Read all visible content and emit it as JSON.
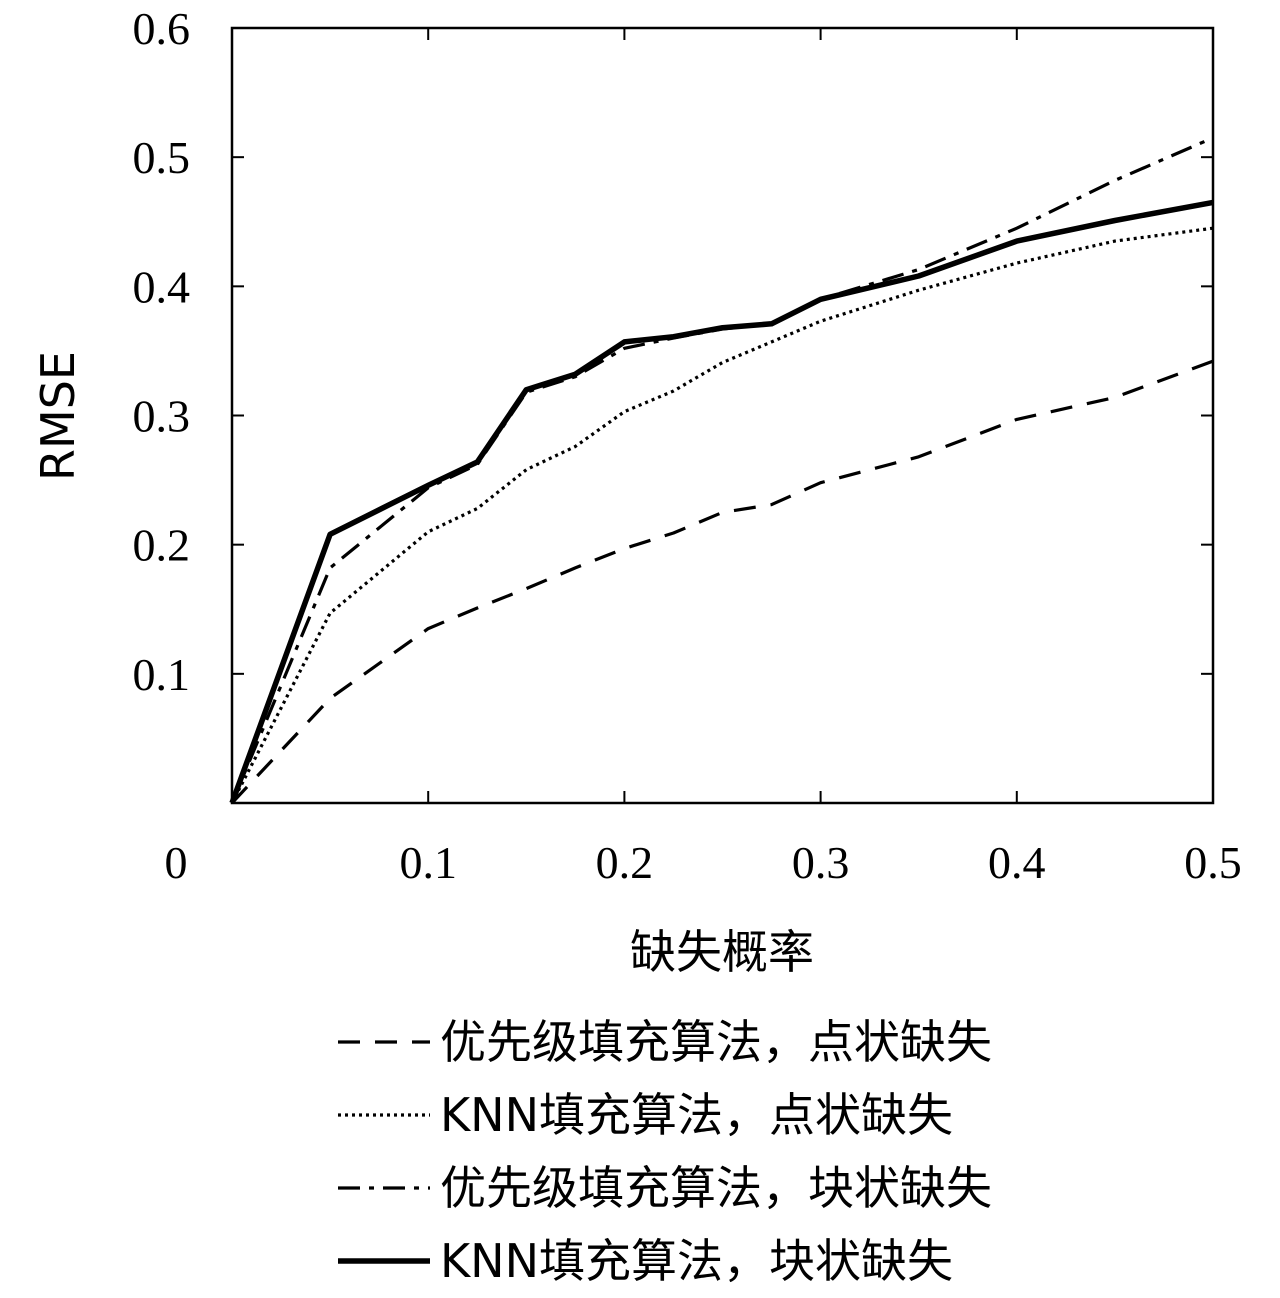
{
  "chart_data": {
    "type": "line",
    "title": "",
    "xlabel": "缺失概率",
    "ylabel": "RMSE",
    "xlim": [
      0,
      0.5
    ],
    "ylim": [
      0,
      0.6
    ],
    "xticks": [
      0,
      0.1,
      0.2,
      0.3,
      0.4,
      0.5
    ],
    "xtick_labels": [
      "0",
      "0.1",
      "0.2",
      "0.3",
      "0.4",
      "0.5"
    ],
    "yticks": [
      0.1,
      0.2,
      0.3,
      0.4,
      0.5,
      0.6
    ],
    "ytick_labels": [
      "0.1",
      "0.2",
      "0.3",
      "0.4",
      "0.5",
      "0.6"
    ],
    "grid": false,
    "legend_position": "bottom",
    "series": [
      {
        "name": "优先级填充算法，点状缺失",
        "style": "dashed",
        "color": "#000000",
        "x": [
          0,
          0.05,
          0.1,
          0.125,
          0.15,
          0.175,
          0.2,
          0.225,
          0.25,
          0.275,
          0.3,
          0.35,
          0.4,
          0.45,
          0.5
        ],
        "y": [
          0,
          0.081,
          0.135,
          0.151,
          0.166,
          0.182,
          0.197,
          0.209,
          0.225,
          0.231,
          0.248,
          0.268,
          0.297,
          0.314,
          0.342
        ]
      },
      {
        "name": "KNN填充算法，点状缺失",
        "style": "dotted",
        "color": "#000000",
        "x": [
          0,
          0.05,
          0.1,
          0.125,
          0.15,
          0.175,
          0.2,
          0.225,
          0.25,
          0.275,
          0.3,
          0.35,
          0.4,
          0.45,
          0.5
        ],
        "y": [
          0,
          0.147,
          0.21,
          0.228,
          0.258,
          0.276,
          0.303,
          0.319,
          0.341,
          0.357,
          0.373,
          0.397,
          0.418,
          0.435,
          0.445
        ]
      },
      {
        "name": "优先级填充算法，块状缺失",
        "style": "dashdot",
        "color": "#000000",
        "x": [
          0,
          0.05,
          0.1,
          0.125,
          0.15,
          0.175,
          0.2,
          0.225,
          0.25,
          0.275,
          0.3,
          0.35,
          0.4,
          0.45,
          0.5
        ],
        "y": [
          0,
          0.182,
          0.244,
          0.262,
          0.318,
          0.33,
          0.352,
          0.36,
          0.367,
          0.371,
          0.39,
          0.413,
          0.445,
          0.482,
          0.515
        ]
      },
      {
        "name": "KNN填充算法，块状缺失",
        "style": "solid",
        "color": "#000000",
        "x": [
          0,
          0.05,
          0.1,
          0.125,
          0.15,
          0.175,
          0.2,
          0.225,
          0.25,
          0.275,
          0.3,
          0.35,
          0.4,
          0.45,
          0.5
        ],
        "y": [
          0,
          0.208,
          0.246,
          0.264,
          0.32,
          0.332,
          0.357,
          0.361,
          0.368,
          0.371,
          0.39,
          0.408,
          0.435,
          0.451,
          0.465
        ]
      }
    ]
  }
}
